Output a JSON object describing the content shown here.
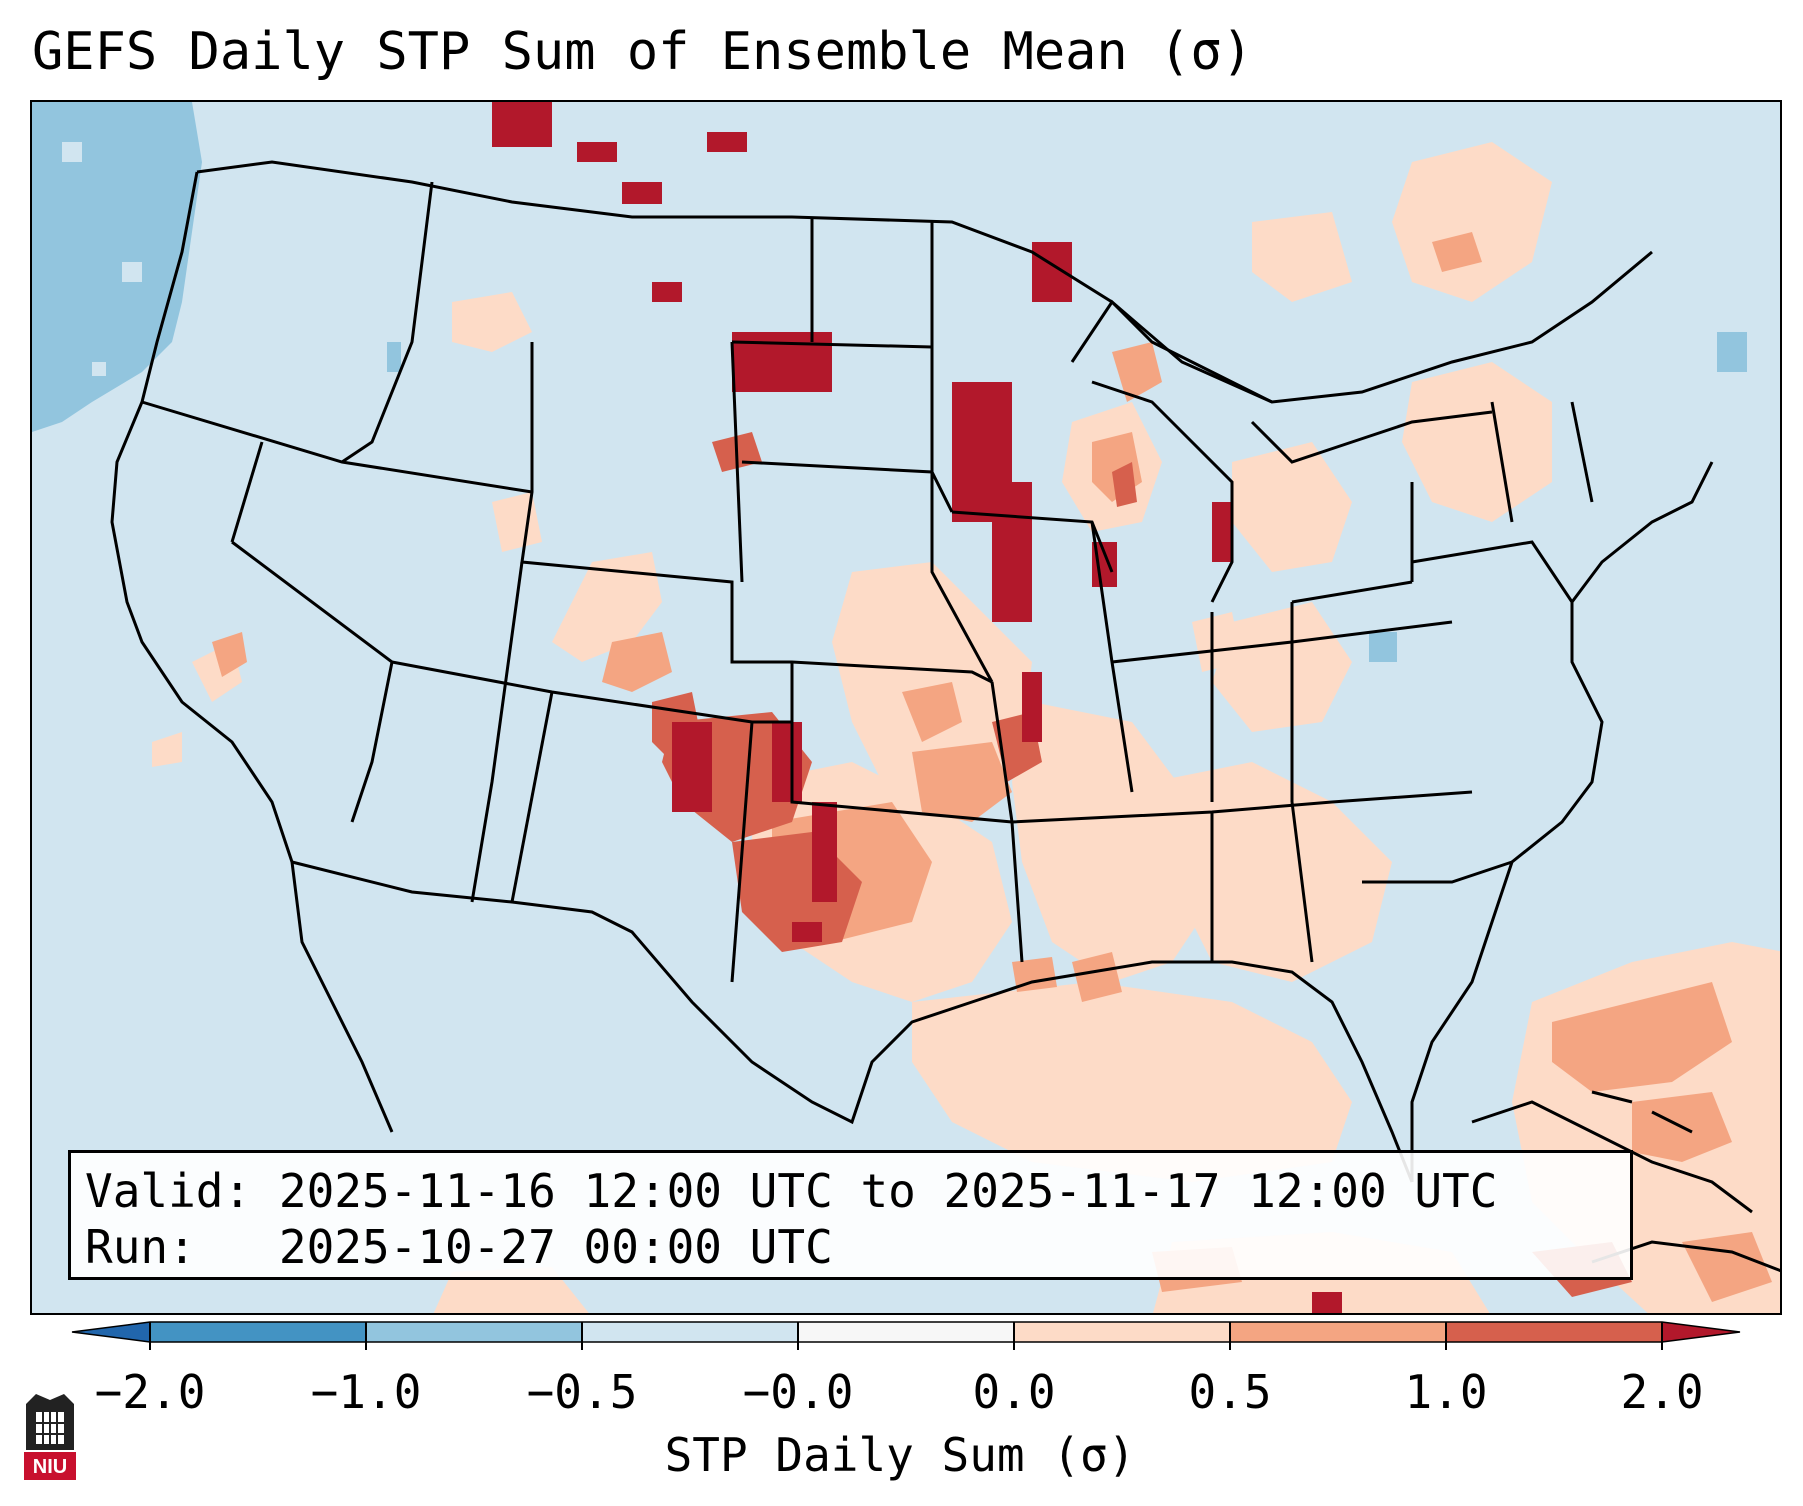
{
  "title": "GEFS Daily STP Sum of Ensemble Mean (σ)",
  "info": {
    "valid_label": "Valid:",
    "valid_value": "2025-11-16 12:00 UTC to 2025-11-17 12:00 UTC",
    "run_label": "Run:",
    "run_value": "2025-10-27 00:00 UTC"
  },
  "colorbar": {
    "label": "STP Daily Sum (σ)",
    "ticks": [
      "−2.0",
      "−1.0",
      "−0.5",
      "−0.0",
      "0.0",
      "0.5",
      "1.0",
      "2.0"
    ],
    "colors": [
      "#4393c3",
      "#92c5de",
      "#d1e5f0",
      "#f7f7f7",
      "#fddbc7",
      "#f4a582",
      "#d6604d",
      "#b2182b"
    ],
    "extend_low_color": "#2166ac",
    "extend_high_color": "#b2182b"
  },
  "logo": {
    "text": "NIU"
  },
  "chart_data": {
    "type": "heatmap",
    "title": "GEFS Daily STP Sum of Ensemble Mean (σ)",
    "variable": "STP Daily Sum (σ)",
    "bounds": [
      -2.0,
      -1.0,
      -0.5,
      -0.0,
      0.0,
      0.5,
      1.0,
      2.0
    ],
    "region": "Contiguous United States",
    "notable_regions": [
      {
        "area": "Texas Panhandle / western Oklahoma",
        "level": "1.0 to 2.0"
      },
      {
        "area": "eastern New Mexico",
        "level": "1.0 to 2.0"
      },
      {
        "area": "Minnesota / Iowa",
        "level": "1.0 to 2.0"
      },
      {
        "area": "South Dakota",
        "level": "1.0 to 2.0"
      },
      {
        "area": "Louisiana / Mississippi / Gulf Coast",
        "level": "0.0 to 0.5"
      },
      {
        "area": "Pacific Ocean off Washington/Oregon",
        "level": "-1.0 to -0.5"
      }
    ]
  }
}
